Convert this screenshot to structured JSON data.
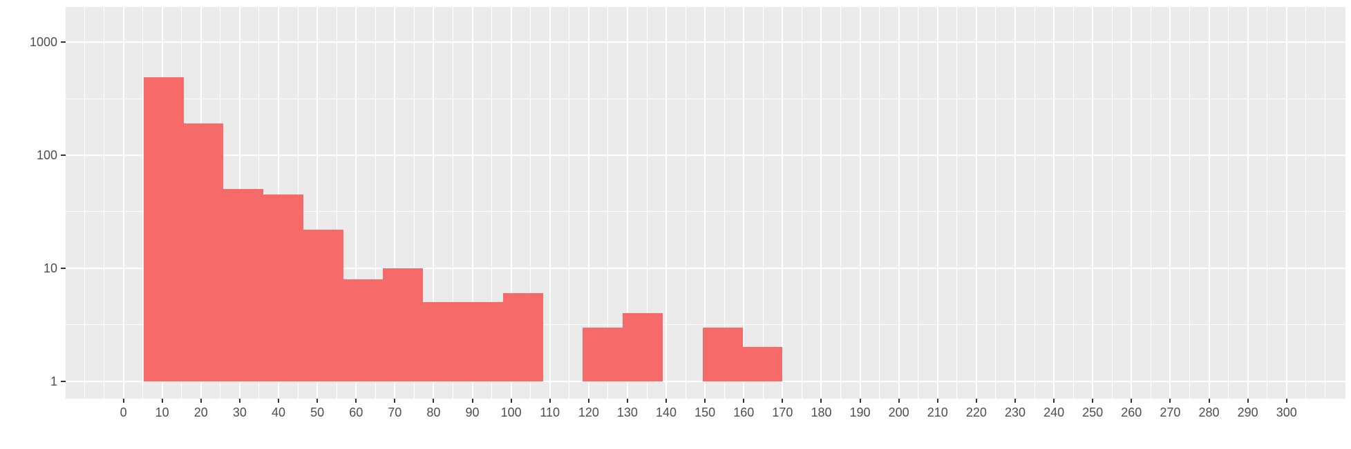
{
  "chart_data": {
    "type": "bar",
    "subtype": "histogram",
    "title": "",
    "xlabel": "",
    "ylabel": "",
    "legend": "none",
    "grid": true,
    "y_scale": "log10",
    "x_ticks": [
      0,
      10,
      20,
      30,
      40,
      50,
      60,
      70,
      80,
      90,
      100,
      110,
      120,
      130,
      140,
      150,
      160,
      170,
      180,
      190,
      200,
      210,
      220,
      230,
      240,
      250,
      260,
      270,
      280,
      290,
      300
    ],
    "y_ticks": [
      1,
      10,
      100,
      1000
    ],
    "x_domain": [
      -14.9,
      315.2
    ],
    "y_log_domain": [
      -0.154,
      3.312
    ],
    "x_minor_step": 5,
    "x_minor_range": [
      -10,
      310
    ],
    "y_minor_exponents": [
      0.5,
      1.5,
      2.5
    ],
    "bins": [
      {
        "x0": 5.2,
        "x1": 15.5,
        "count": 490
      },
      {
        "x0": 15.5,
        "x1": 25.8,
        "count": 190
      },
      {
        "x0": 25.8,
        "x1": 36.1,
        "count": 50
      },
      {
        "x0": 36.1,
        "x1": 46.4,
        "count": 45
      },
      {
        "x0": 46.4,
        "x1": 56.7,
        "count": 22
      },
      {
        "x0": 56.7,
        "x1": 67.0,
        "count": 8
      },
      {
        "x0": 67.0,
        "x1": 77.3,
        "count": 10
      },
      {
        "x0": 77.3,
        "x1": 87.6,
        "count": 5
      },
      {
        "x0": 87.6,
        "x1": 97.9,
        "count": 5
      },
      {
        "x0": 97.9,
        "x1": 108.2,
        "count": 6
      },
      {
        "x0": 108.2,
        "x1": 118.5,
        "count": 0
      },
      {
        "x0": 118.5,
        "x1": 128.8,
        "count": 3
      },
      {
        "x0": 128.8,
        "x1": 139.1,
        "count": 4
      },
      {
        "x0": 139.1,
        "x1": 149.4,
        "count": 0
      },
      {
        "x0": 149.4,
        "x1": 159.7,
        "count": 3
      },
      {
        "x0": 159.7,
        "x1": 170.0,
        "count": 2
      }
    ],
    "colors": {
      "bar_fill": "#F66A6A",
      "panel_bg": "#EBEBEB",
      "grid": "#FFFFFF",
      "axis_text": "#4D4D4D",
      "tick_mark": "#333333",
      "background": "#FFFFFF"
    }
  }
}
